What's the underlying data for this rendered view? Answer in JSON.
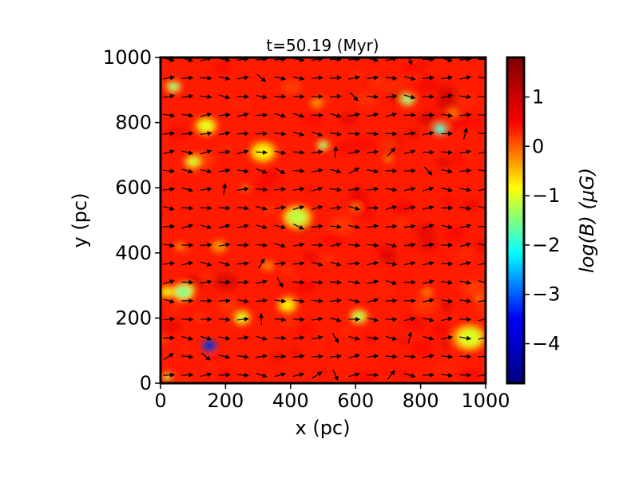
{
  "chart_data": {
    "type": "heatmap",
    "title": "t=50.19 (Myr)",
    "xlabel": "x (pc)",
    "ylabel": "y (pc)",
    "xlim": [
      0,
      1000
    ],
    "ylim": [
      0,
      1000
    ],
    "x_ticks": [
      0,
      200,
      400,
      600,
      800,
      1000
    ],
    "y_ticks": [
      0,
      200,
      400,
      600,
      800,
      1000
    ],
    "colorbar": {
      "label": "log(B) (μG)",
      "range": [
        -4.8,
        1.8
      ],
      "ticks": [
        1,
        0,
        -1,
        -2,
        -3,
        -4
      ],
      "tick_labels": [
        "1",
        "0",
        "−1",
        "−2",
        "−3",
        "−4"
      ],
      "colormap": "jet",
      "stops": [
        "#00007f",
        "#0000ff",
        "#00ffff",
        "#ffff00",
        "#ff0000",
        "#7f0000"
      ]
    },
    "background_level": 0.8,
    "features": [
      {
        "x": 315,
        "y": 710,
        "r": 30,
        "level": -0.6
      },
      {
        "x": 420,
        "y": 510,
        "r": 30,
        "level": -1.1
      },
      {
        "x": 500,
        "y": 730,
        "r": 12,
        "level": -1.6
      },
      {
        "x": 390,
        "y": 240,
        "r": 22,
        "level": -0.6
      },
      {
        "x": 610,
        "y": 205,
        "r": 18,
        "level": -1.2
      },
      {
        "x": 150,
        "y": 115,
        "r": 14,
        "level": -4.3
      },
      {
        "x": 70,
        "y": 280,
        "r": 22,
        "level": -1.6
      },
      {
        "x": 20,
        "y": 280,
        "r": 16,
        "level": -0.8
      },
      {
        "x": 40,
        "y": 910,
        "r": 14,
        "level": -1.6
      },
      {
        "x": 140,
        "y": 790,
        "r": 24,
        "level": -0.8
      },
      {
        "x": 100,
        "y": 680,
        "r": 18,
        "level": -1.0
      },
      {
        "x": 860,
        "y": 780,
        "r": 14,
        "level": -2.3
      },
      {
        "x": 760,
        "y": 870,
        "r": 14,
        "level": -1.7
      },
      {
        "x": 950,
        "y": 140,
        "r": 35,
        "level": -0.9
      },
      {
        "x": 250,
        "y": 200,
        "r": 18,
        "level": -0.9
      },
      {
        "x": 480,
        "y": 860,
        "r": 16,
        "level": 0.0
      },
      {
        "x": 820,
        "y": 280,
        "r": 14,
        "level": 0.1
      },
      {
        "x": 180,
        "y": 420,
        "r": 20,
        "level": 0.0
      },
      {
        "x": 330,
        "y": 360,
        "r": 16,
        "level": 0.1
      },
      {
        "x": 700,
        "y": 690,
        "r": 14,
        "level": 0.2
      },
      {
        "x": 60,
        "y": 420,
        "r": 14,
        "level": 0.1
      },
      {
        "x": 900,
        "y": 830,
        "r": 16,
        "level": 0.2
      },
      {
        "x": 20,
        "y": 20,
        "r": 10,
        "level": -1.3
      },
      {
        "x": 600,
        "y": 540,
        "r": 14,
        "level": 0.2
      },
      {
        "x": 260,
        "y": 600,
        "r": 12,
        "level": 0.2
      },
      {
        "x": 980,
        "y": 260,
        "r": 12,
        "level": 0.1
      }
    ],
    "vector_field": {
      "x_start": 25,
      "y_start": 25,
      "step": 57,
      "dominant_direction": "rightward",
      "arrow_color": "#000000"
    }
  }
}
